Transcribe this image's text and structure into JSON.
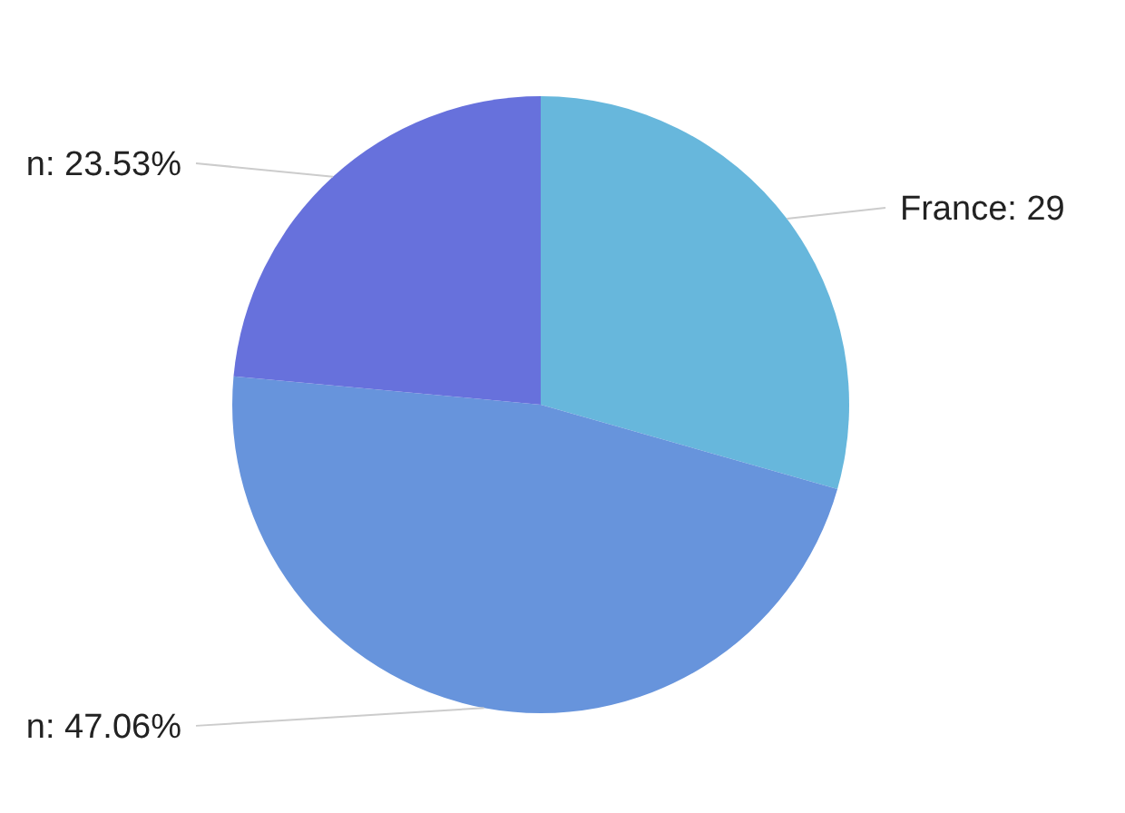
{
  "chart_data": {
    "type": "pie",
    "categories": [
      "France",
      "n",
      "n"
    ],
    "values": [
      29.41,
      47.06,
      23.53
    ],
    "colors": [
      "#67b7dc",
      "#6794dc",
      "#6771dc"
    ],
    "value_labels": [
      "29",
      "47.06%",
      "23.53%"
    ]
  }
}
